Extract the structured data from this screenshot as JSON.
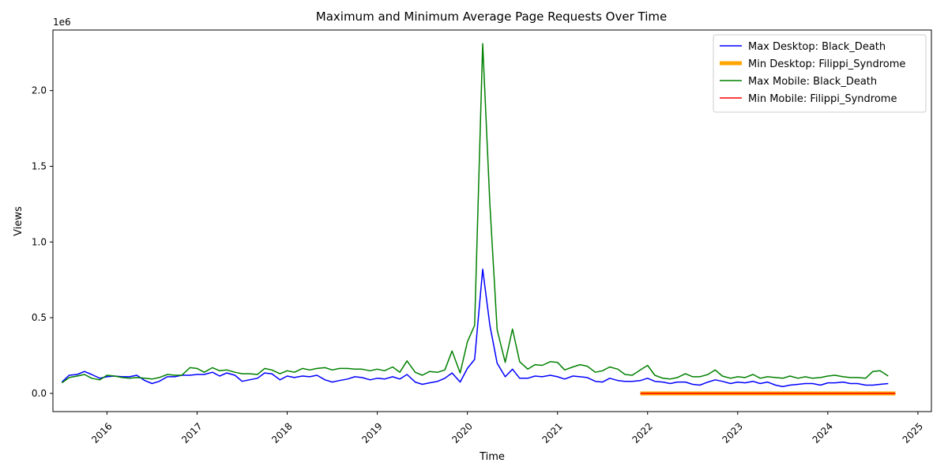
{
  "chart_data": {
    "type": "line",
    "title": "Maximum and Minimum Average Page Requests Over Time",
    "xlabel": "Time",
    "ylabel": "Views",
    "y_offset_label": "1e6",
    "xlim": [
      2015.4,
      2025.15
    ],
    "ylim": [
      -120000,
      2400000
    ],
    "x_ticks": [
      2016,
      2017,
      2018,
      2019,
      2020,
      2021,
      2022,
      2023,
      2024,
      2025
    ],
    "y_ticks": [
      {
        "value": 0,
        "label": "0.0"
      },
      {
        "value": 500000,
        "label": "0.5"
      },
      {
        "value": 1000000,
        "label": "1.0"
      },
      {
        "value": 1500000,
        "label": "1.5"
      },
      {
        "value": 2000000,
        "label": "2.0"
      }
    ],
    "legend_position": "top-right",
    "grid": false,
    "series": [
      {
        "name": "Max Desktop: Black_Death",
        "color": "#0000ff",
        "width": 1.5,
        "x": [
          2015.5,
          2015.58,
          2015.67,
          2015.75,
          2015.83,
          2015.92,
          2016.0,
          2016.08,
          2016.17,
          2016.25,
          2016.33,
          2016.42,
          2016.5,
          2016.58,
          2016.67,
          2016.75,
          2016.83,
          2016.92,
          2017.0,
          2017.08,
          2017.17,
          2017.25,
          2017.33,
          2017.42,
          2017.5,
          2017.58,
          2017.67,
          2017.75,
          2017.83,
          2017.92,
          2018.0,
          2018.08,
          2018.17,
          2018.25,
          2018.33,
          2018.42,
          2018.5,
          2018.58,
          2018.67,
          2018.75,
          2018.83,
          2018.92,
          2019.0,
          2019.08,
          2019.17,
          2019.25,
          2019.33,
          2019.42,
          2019.5,
          2019.58,
          2019.67,
          2019.75,
          2019.83,
          2019.92,
          2020.0,
          2020.08,
          2020.17,
          2020.25,
          2020.33,
          2020.42,
          2020.5,
          2020.58,
          2020.67,
          2020.75,
          2020.83,
          2020.92,
          2021.0,
          2021.08,
          2021.17,
          2021.25,
          2021.33,
          2021.42,
          2021.5,
          2021.58,
          2021.67,
          2021.75,
          2021.83,
          2021.92,
          2022.0,
          2022.08,
          2022.17,
          2022.25,
          2022.33,
          2022.42,
          2022.5,
          2022.58,
          2022.67,
          2022.75,
          2022.83,
          2022.92,
          2023.0,
          2023.08,
          2023.17,
          2023.25,
          2023.33,
          2023.42,
          2023.5,
          2023.58,
          2023.67,
          2023.75,
          2023.83,
          2023.92,
          2024.0,
          2024.08,
          2024.17,
          2024.25,
          2024.33,
          2024.42,
          2024.5,
          2024.58,
          2024.67
        ],
        "y": [
          75000,
          120000,
          125000,
          145000,
          125000,
          100000,
          110000,
          115000,
          110000,
          110000,
          120000,
          85000,
          65000,
          80000,
          110000,
          110000,
          120000,
          120000,
          125000,
          125000,
          140000,
          115000,
          135000,
          120000,
          80000,
          90000,
          100000,
          135000,
          130000,
          90000,
          115000,
          105000,
          115000,
          110000,
          120000,
          90000,
          75000,
          85000,
          95000,
          110000,
          105000,
          90000,
          100000,
          95000,
          110000,
          95000,
          125000,
          75000,
          60000,
          70000,
          80000,
          100000,
          135000,
          75000,
          165000,
          225000,
          820000,
          450000,
          200000,
          110000,
          160000,
          100000,
          100000,
          115000,
          110000,
          120000,
          110000,
          95000,
          115000,
          110000,
          105000,
          80000,
          75000,
          100000,
          85000,
          80000,
          80000,
          85000,
          100000,
          80000,
          75000,
          65000,
          75000,
          75000,
          60000,
          55000,
          75000,
          90000,
          80000,
          65000,
          75000,
          70000,
          80000,
          65000,
          75000,
          55000,
          45000,
          55000,
          60000,
          65000,
          65000,
          55000,
          70000,
          70000,
          75000,
          65000,
          65000,
          55000,
          55000,
          60000,
          65000
        ]
      },
      {
        "name": "Min Desktop: Filippi_Syndrome",
        "color": "#ffa500",
        "width": 5,
        "x": [
          2021.92,
          2024.75
        ],
        "y": [
          0,
          0
        ]
      },
      {
        "name": "Max Mobile: Black_Death",
        "color": "#008000",
        "width": 1.5,
        "x": [
          2015.5,
          2015.58,
          2015.67,
          2015.75,
          2015.83,
          2015.92,
          2016.0,
          2016.08,
          2016.17,
          2016.25,
          2016.33,
          2016.42,
          2016.5,
          2016.58,
          2016.67,
          2016.75,
          2016.83,
          2016.92,
          2017.0,
          2017.08,
          2017.17,
          2017.25,
          2017.33,
          2017.42,
          2017.5,
          2017.58,
          2017.67,
          2017.75,
          2017.83,
          2017.92,
          2018.0,
          2018.08,
          2018.17,
          2018.25,
          2018.33,
          2018.42,
          2018.5,
          2018.58,
          2018.67,
          2018.75,
          2018.83,
          2018.92,
          2019.0,
          2019.08,
          2019.17,
          2019.25,
          2019.33,
          2019.42,
          2019.5,
          2019.58,
          2019.67,
          2019.75,
          2019.83,
          2019.92,
          2020.0,
          2020.08,
          2020.17,
          2020.25,
          2020.33,
          2020.42,
          2020.5,
          2020.58,
          2020.67,
          2020.75,
          2020.83,
          2020.92,
          2021.0,
          2021.08,
          2021.17,
          2021.25,
          2021.33,
          2021.42,
          2021.5,
          2021.58,
          2021.67,
          2021.75,
          2021.83,
          2021.92,
          2022.0,
          2022.08,
          2022.17,
          2022.25,
          2022.33,
          2022.42,
          2022.5,
          2022.58,
          2022.67,
          2022.75,
          2022.83,
          2022.92,
          2023.0,
          2023.08,
          2023.17,
          2023.25,
          2023.33,
          2023.42,
          2023.5,
          2023.58,
          2023.67,
          2023.75,
          2023.83,
          2023.92,
          2024.0,
          2024.08,
          2024.17,
          2024.25,
          2024.33,
          2024.42,
          2024.5,
          2024.58,
          2024.67
        ],
        "y": [
          70000,
          105000,
          115000,
          125000,
          100000,
          90000,
          120000,
          115000,
          105000,
          100000,
          105000,
          100000,
          95000,
          105000,
          125000,
          120000,
          120000,
          170000,
          165000,
          140000,
          170000,
          150000,
          155000,
          140000,
          130000,
          130000,
          125000,
          165000,
          155000,
          130000,
          150000,
          140000,
          165000,
          155000,
          165000,
          170000,
          155000,
          165000,
          165000,
          160000,
          160000,
          150000,
          160000,
          150000,
          175000,
          140000,
          215000,
          140000,
          120000,
          145000,
          140000,
          155000,
          280000,
          135000,
          340000,
          450000,
          2310000,
          1250000,
          420000,
          205000,
          425000,
          210000,
          160000,
          190000,
          185000,
          210000,
          205000,
          155000,
          175000,
          190000,
          180000,
          140000,
          150000,
          175000,
          160000,
          125000,
          120000,
          155000,
          185000,
          120000,
          100000,
          95000,
          105000,
          130000,
          110000,
          110000,
          125000,
          155000,
          115000,
          100000,
          110000,
          105000,
          125000,
          100000,
          110000,
          105000,
          100000,
          115000,
          100000,
          110000,
          100000,
          105000,
          115000,
          120000,
          110000,
          105000,
          105000,
          100000,
          145000,
          150000,
          115000
        ]
      },
      {
        "name": "Min Mobile: Filippi_Syndrome",
        "color": "#ff0000",
        "width": 1.5,
        "x": [
          2021.92,
          2024.75
        ],
        "y": [
          0,
          0
        ]
      }
    ]
  }
}
